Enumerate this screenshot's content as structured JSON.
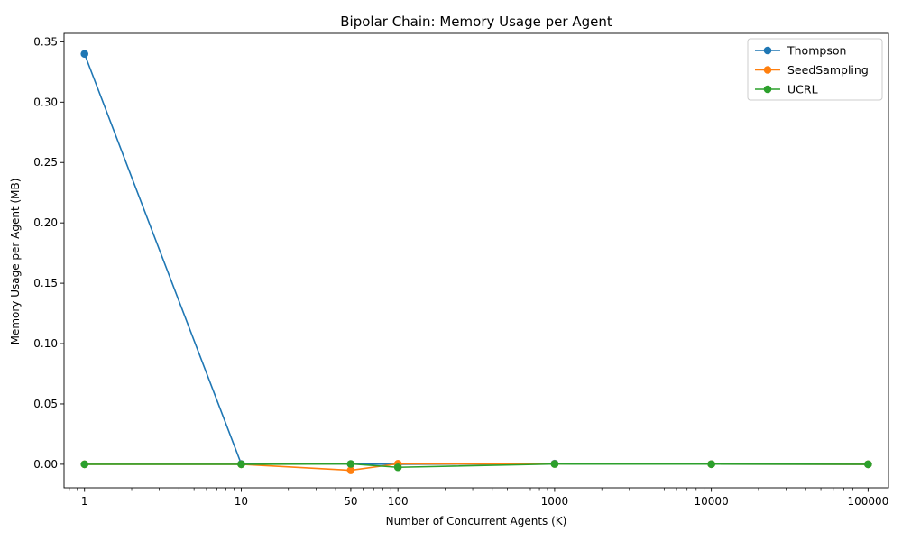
{
  "chart_data": {
    "type": "line",
    "title": "Bipolar Chain: Memory Usage per Agent",
    "xlabel": "Number of Concurrent Agents (K)",
    "ylabel": "Memory Usage per Agent (MB)",
    "xscale": "log",
    "xlim": [
      0.74,
      135000
    ],
    "ylim": [
      -0.0195,
      0.357
    ],
    "x": [
      1,
      10,
      50,
      100,
      1000,
      10000,
      100000
    ],
    "x_tick_labels": [
      "1",
      "10",
      "50",
      "100",
      "1000",
      "10000",
      "100000"
    ],
    "y_ticks": [
      0.0,
      0.05,
      0.1,
      0.15,
      0.2,
      0.25,
      0.3,
      0.35
    ],
    "y_tick_labels": [
      "0.00",
      "0.05",
      "0.10",
      "0.15",
      "0.20",
      "0.25",
      "0.30",
      "0.35"
    ],
    "grid": false,
    "legend_position": "top-right",
    "series": [
      {
        "name": "Thompson",
        "color": "#1f77b4",
        "values": [
          0.34,
          0.0003,
          0.0002,
          0.0,
          0.0005,
          0.0001,
          0.0
        ]
      },
      {
        "name": "SeedSampling",
        "color": "#ff7f0e",
        "values": [
          0.0,
          0.0,
          -0.005,
          0.0004,
          0.0003,
          0.0001,
          0.0
        ]
      },
      {
        "name": "UCRL",
        "color": "#2ca02c",
        "values": [
          0.0,
          0.0,
          0.0003,
          -0.0025,
          0.0002,
          0.0001,
          0.0
        ]
      }
    ]
  }
}
